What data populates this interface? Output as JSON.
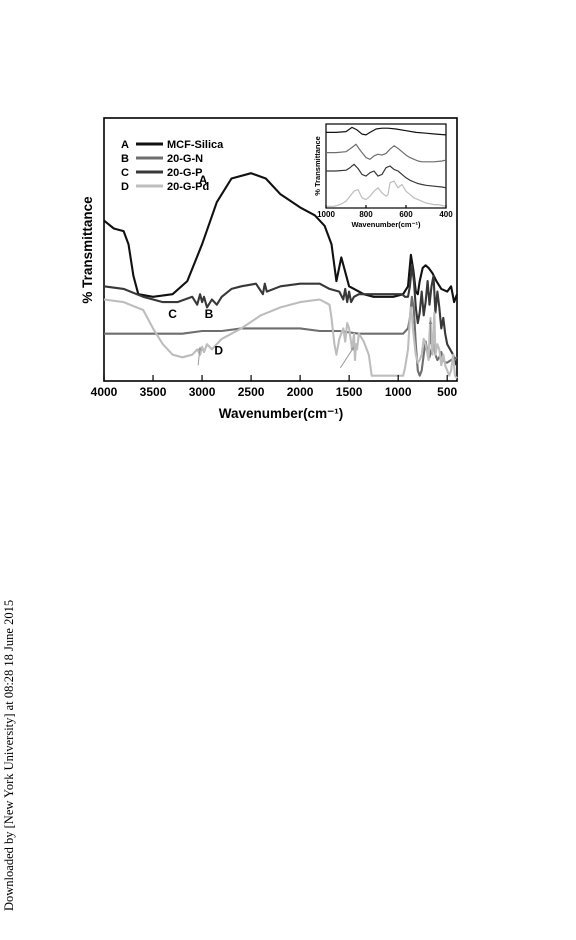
{
  "side_note": "Downloaded by [New York University] at 08:28 18 June 2015",
  "chart_data": [
    {
      "type": "line",
      "title": "",
      "xlabel": "Wavenumber(cm⁻¹)",
      "ylabel": "% Transmittance",
      "xlim": [
        4000,
        400
      ],
      "x_reversed": true,
      "xticks": [
        4000,
        3500,
        3000,
        2500,
        2000,
        1500,
        1000,
        500
      ],
      "y_ticks_shown": false,
      "ylim": [
        0,
        100
      ],
      "legend_position": "top-left",
      "grid": false,
      "series": [
        {
          "name": "MCF-Silica",
          "letter": "A",
          "color": "#111111",
          "x": [
            4000,
            3900,
            3800,
            3750,
            3700,
            3650,
            3500,
            3300,
            3150,
            3000,
            2850,
            2700,
            2500,
            2350,
            2200,
            2000,
            1850,
            1750,
            1680,
            1630,
            1580,
            1500,
            1350,
            1250,
            1150,
            1050,
            950,
            900,
            870,
            845,
            820,
            800,
            780,
            750,
            720,
            690,
            650,
            610,
            560,
            500,
            460,
            430,
            400
          ],
          "y": [
            61,
            58,
            57,
            52,
            40,
            33,
            32,
            33,
            38,
            52,
            68,
            77,
            79,
            77,
            71,
            66,
            63,
            59,
            52,
            38,
            47,
            36,
            33,
            32,
            32,
            32,
            33,
            36,
            48,
            42,
            34,
            33,
            38,
            43,
            44,
            43,
            41,
            38,
            35,
            34,
            36,
            30,
            33
          ]
        },
        {
          "name": "20-G-N",
          "letter": "B",
          "color": "#6e6e6e",
          "x": [
            4000,
            3800,
            3600,
            3400,
            3200,
            3000,
            2800,
            2600,
            2400,
            2200,
            2000,
            1800,
            1600,
            1400,
            1200,
            1050,
            950,
            900,
            880,
            860,
            840,
            820,
            800,
            780,
            760,
            740,
            720,
            700,
            680,
            660,
            640,
            620,
            600,
            580,
            560,
            540,
            520,
            500,
            460,
            400
          ],
          "y": [
            18,
            18,
            18,
            18,
            18,
            19,
            19,
            20,
            20,
            20,
            20,
            19,
            19,
            18,
            18,
            18,
            18,
            20,
            24,
            32,
            27,
            14,
            4,
            2,
            4,
            10,
            15,
            11,
            9,
            12,
            14,
            10,
            8,
            9,
            11,
            8,
            7,
            7,
            8,
            9
          ]
        },
        {
          "name": "20-G-P",
          "letter": "C",
          "color": "#383838",
          "x": [
            4000,
            3800,
            3600,
            3400,
            3250,
            3100,
            3050,
            3020,
            3000,
            2980,
            2950,
            2900,
            2850,
            2800,
            2700,
            2600,
            2450,
            2380,
            2360,
            2340,
            2200,
            2000,
            1800,
            1700,
            1600,
            1560,
            1540,
            1520,
            1500,
            1480,
            1450,
            1400,
            1300,
            1200,
            1100,
            1000,
            960,
            930,
            900,
            880,
            860,
            840,
            820,
            800,
            780,
            760,
            740,
            720,
            700,
            680,
            660,
            640,
            620,
            600,
            580,
            560,
            540,
            520,
            500,
            470,
            440,
            410
          ],
          "y": [
            36,
            35,
            32,
            30,
            30,
            32,
            29,
            33,
            30,
            32,
            28,
            31,
            29,
            32,
            35,
            36,
            37,
            33,
            37,
            34,
            36,
            37,
            37,
            35,
            34,
            31,
            35,
            30,
            34,
            30,
            32,
            33,
            33,
            33,
            33,
            33,
            33,
            32,
            32,
            36,
            44,
            38,
            28,
            22,
            26,
            34,
            25,
            30,
            38,
            29,
            36,
            40,
            26,
            34,
            28,
            20,
            24,
            18,
            14,
            12,
            10,
            6
          ]
        },
        {
          "name": "20-G-Pd",
          "letter": "D",
          "color": "#bdbdbd",
          "x": [
            4000,
            3800,
            3600,
            3500,
            3400,
            3300,
            3200,
            3100,
            3050,
            3020,
            3000,
            2980,
            2950,
            2900,
            2800,
            2600,
            2400,
            2200,
            2000,
            1800,
            1700,
            1680,
            1650,
            1630,
            1600,
            1560,
            1540,
            1520,
            1500,
            1470,
            1450,
            1440,
            1430,
            1420,
            1400,
            1350,
            1300,
            1270,
            1250,
            1200,
            1150,
            1100,
            1050,
            1000,
            950,
            930,
            900,
            880,
            870,
            860,
            850,
            820,
            800,
            780,
            760,
            740,
            720,
            700,
            690,
            680,
            670,
            660,
            650,
            640,
            630,
            620,
            600,
            580,
            560,
            540,
            520,
            500,
            480,
            460,
            440,
            420,
            400
          ],
          "y": [
            31,
            30,
            27,
            20,
            14,
            10,
            9,
            10,
            12,
            10,
            13,
            11,
            14,
            12,
            16,
            20,
            25,
            28,
            30,
            31,
            29,
            24,
            14,
            10,
            16,
            20,
            15,
            22,
            20,
            12,
            18,
            8,
            14,
            12,
            18,
            15,
            10,
            2,
            2,
            2,
            2,
            2,
            2,
            2,
            2,
            5,
            12,
            24,
            28,
            25,
            20,
            10,
            7,
            8,
            10,
            16,
            14,
            10,
            8,
            18,
            24,
            14,
            10,
            20,
            26,
            10,
            14,
            12,
            6,
            10,
            6,
            4,
            2,
            4,
            10,
            2,
            1
          ]
        }
      ],
      "annotation_labels": [
        {
          "text": "A",
          "x": 2990,
          "y": 75
        },
        {
          "text": "B",
          "x": 2930,
          "y": 24
        },
        {
          "text": "C",
          "x": 3300,
          "y": 24
        },
        {
          "text": "D",
          "x": 2830,
          "y": 10
        }
      ],
      "arrows": [
        {
          "series": "20-G-Pd",
          "from": [
            3040,
            6
          ],
          "to": [
            3020,
            13
          ],
          "color": "#999999"
        },
        {
          "series": "20-G-Pd",
          "from": [
            1590,
            5
          ],
          "to": [
            1450,
            13
          ],
          "color": "#999999"
        },
        {
          "series": "20-G-N",
          "from": [
            670,
            14
          ],
          "to": [
            670,
            23
          ],
          "color": "#888888"
        }
      ]
    },
    {
      "type": "line",
      "title": "",
      "xlabel": "Wavenumber(cm⁻¹)",
      "ylabel": "% Transmittance",
      "xlim": [
        1000,
        400
      ],
      "x_reversed": true,
      "xticks": [
        1000,
        800,
        600,
        400
      ],
      "y_ticks_shown": false,
      "ylim": [
        0,
        100
      ],
      "grid": false,
      "series": [
        {
          "name": "MCF-Silica",
          "letter": "A",
          "color": "#111111",
          "x": [
            1000,
            950,
            900,
            870,
            845,
            820,
            800,
            780,
            750,
            720,
            690,
            650,
            600,
            550,
            500,
            450,
            400
          ],
          "y": [
            90,
            90,
            91,
            96,
            93,
            88,
            87,
            90,
            94,
            95,
            95,
            94,
            92,
            90,
            89,
            88,
            87
          ]
        },
        {
          "name": "20-G-N",
          "letter": "B",
          "color": "#6e6e6e",
          "x": [
            1000,
            950,
            900,
            870,
            850,
            830,
            800,
            780,
            760,
            740,
            720,
            700,
            680,
            660,
            640,
            620,
            600,
            580,
            560,
            540,
            520,
            500,
            460,
            420,
            400
          ],
          "y": [
            66,
            66,
            67,
            72,
            76,
            69,
            60,
            58,
            62,
            64,
            63,
            65,
            70,
            74,
            71,
            67,
            63,
            60,
            58,
            56,
            55,
            55,
            55,
            56,
            57
          ]
        },
        {
          "name": "20-G-P",
          "letter": "C",
          "color": "#383838",
          "x": [
            1000,
            950,
            900,
            880,
            860,
            840,
            820,
            800,
            780,
            760,
            740,
            720,
            700,
            680,
            660,
            640,
            620,
            600,
            580,
            560,
            540,
            520,
            500,
            460,
            420,
            400
          ],
          "y": [
            44,
            44,
            45,
            48,
            52,
            47,
            40,
            38,
            42,
            44,
            38,
            40,
            48,
            50,
            46,
            44,
            40,
            36,
            33,
            31,
            29,
            28,
            27,
            26,
            25,
            24
          ]
        },
        {
          "name": "20-G-Pd",
          "letter": "D",
          "color": "#bdbdbd",
          "x": [
            1000,
            960,
            930,
            900,
            880,
            860,
            840,
            820,
            800,
            780,
            760,
            740,
            720,
            700,
            690,
            680,
            660,
            640,
            620,
            600,
            580,
            560,
            540,
            520,
            500,
            480,
            460,
            440,
            420,
            400
          ],
          "y": [
            2,
            2,
            4,
            8,
            14,
            20,
            22,
            12,
            10,
            14,
            20,
            24,
            18,
            14,
            16,
            30,
            32,
            24,
            28,
            20,
            16,
            12,
            10,
            8,
            6,
            5,
            4,
            4,
            3,
            2
          ]
        }
      ]
    }
  ]
}
